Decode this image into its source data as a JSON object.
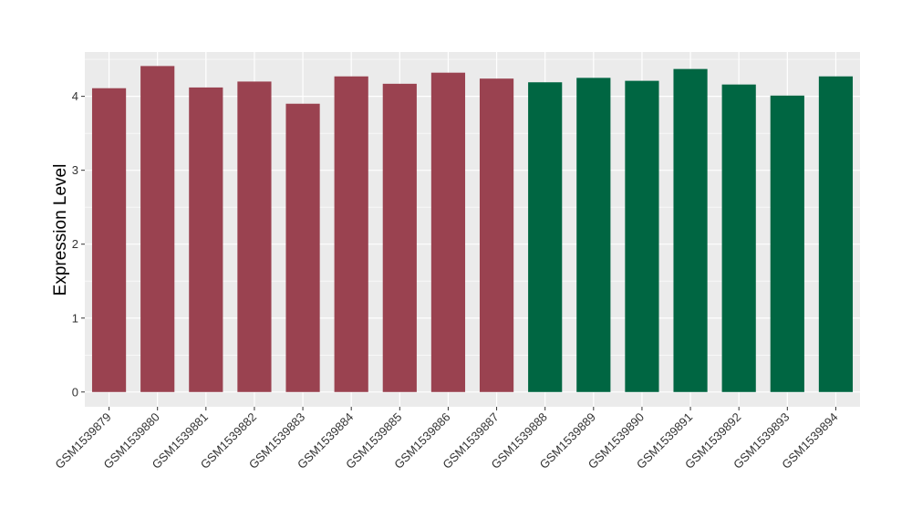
{
  "chart_data": {
    "type": "bar",
    "ylabel": "Expression Level",
    "xlabel": "",
    "ylim": [
      -0.2,
      4.6
    ],
    "yticks": [
      0,
      1,
      2,
      3,
      4
    ],
    "grid": true,
    "categories": [
      "GSM1539879",
      "GSM1539880",
      "GSM1539881",
      "GSM1539882",
      "GSM1539883",
      "GSM1539884",
      "GSM1539885",
      "GSM1539886",
      "GSM1539887",
      "GSM1539888",
      "GSM1539889",
      "GSM1539890",
      "GSM1539891",
      "GSM1539892",
      "GSM1539893",
      "GSM1539894"
    ],
    "values": [
      4.11,
      4.41,
      4.12,
      4.2,
      3.9,
      4.27,
      4.17,
      4.32,
      4.24,
      4.19,
      4.25,
      4.21,
      4.37,
      4.16,
      4.01,
      4.27
    ],
    "groups": [
      "a",
      "a",
      "a",
      "a",
      "a",
      "a",
      "a",
      "a",
      "a",
      "b",
      "b",
      "b",
      "b",
      "b",
      "b",
      "b"
    ],
    "colors": {
      "a": "#9A4250",
      "b": "#006642"
    },
    "panel_background": "#EBEBEB",
    "gridline_color": "#FFFFFF"
  }
}
